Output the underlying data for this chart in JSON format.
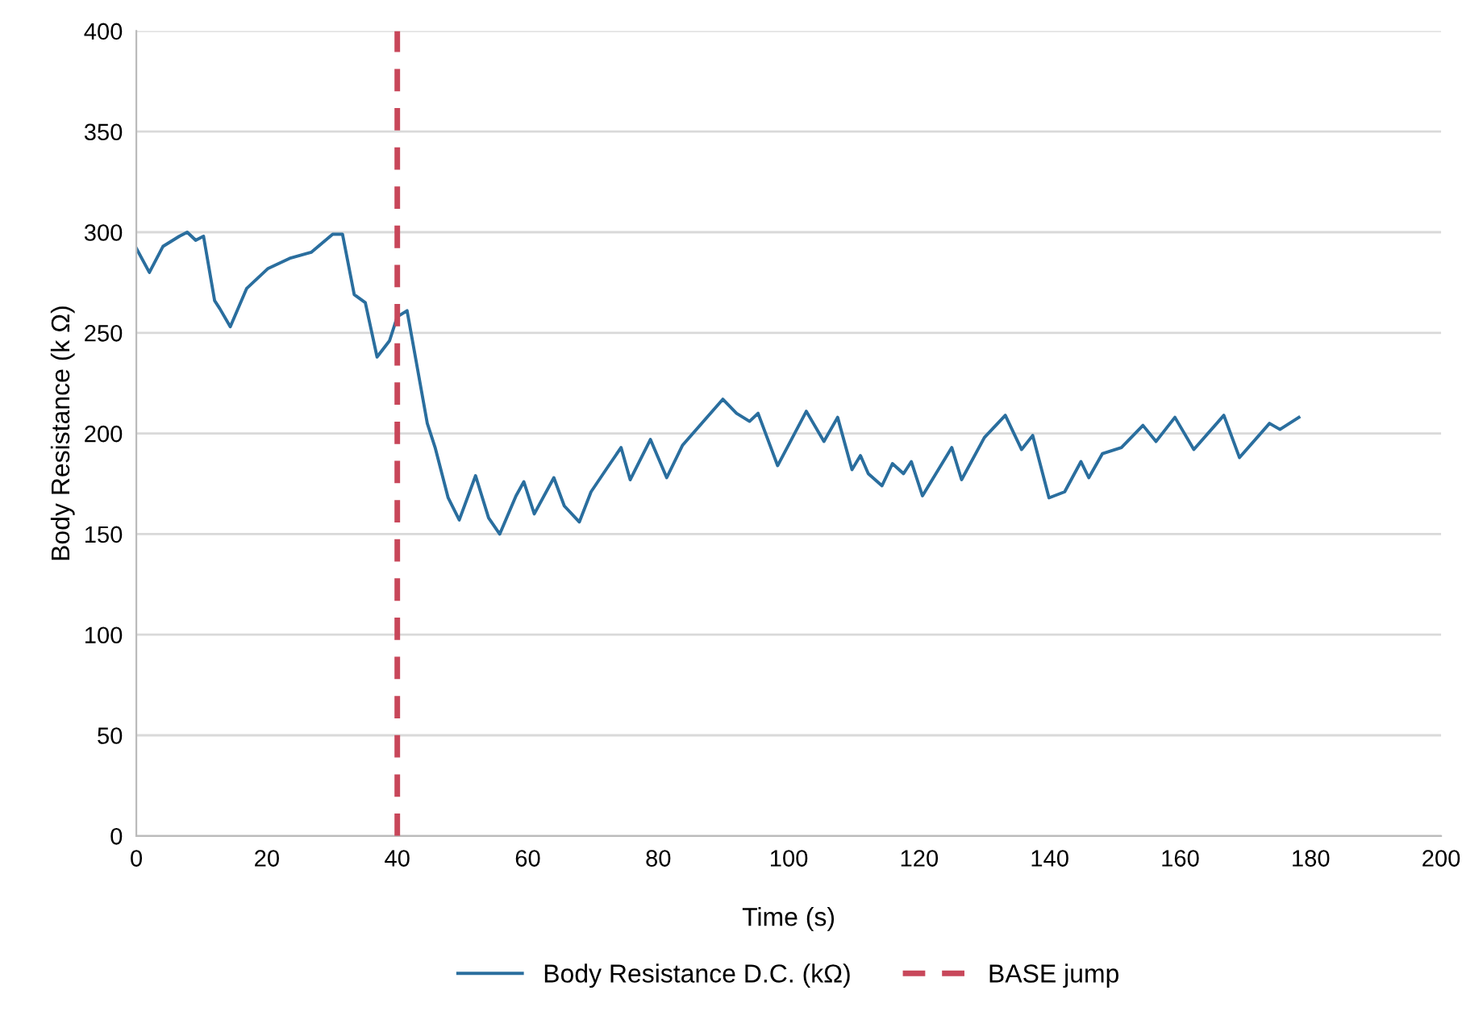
{
  "chart_data": {
    "type": "line",
    "xlabel": "Time (s)",
    "ylabel": "Body Resistance (k Ω)",
    "xlim": [
      0,
      200
    ],
    "xticks": [
      0,
      20,
      40,
      60,
      80,
      100,
      120,
      140,
      160,
      180,
      200
    ],
    "ylim": [
      0,
      400
    ],
    "yticks": [
      0,
      50,
      100,
      150,
      200,
      250,
      300,
      350,
      400
    ],
    "grid": "y",
    "legend": "bottom",
    "marker": "none",
    "line_style": "solid",
    "series": [
      {
        "name": "Body Resistance D.C. (kΩ)",
        "color": "#2a6e9e",
        "x": [
          0,
          2,
          4.1,
          6.6,
          7.8,
          9.1,
          10.3,
          12,
          12.8,
          14.4,
          16.9,
          20.2,
          23.5,
          26.8,
          30.1,
          31.6,
          33.4,
          35.1,
          36.9,
          38.8,
          40,
          41.5,
          44.6,
          45.8,
          47.8,
          49.5,
          52,
          54,
          55.7,
          58.2,
          59.4,
          61,
          64,
          65.6,
          67.9,
          69.7,
          72.2,
          74.3,
          75.7,
          78.8,
          81.3,
          83.7,
          89.9,
          92,
          94,
          95.3,
          98.3,
          102.7,
          105.4,
          107.5,
          109.7,
          111,
          112.2,
          114.3,
          115.9,
          117.6,
          118.8,
          120.5,
          125,
          126.5,
          130,
          133.2,
          135.7,
          137.4,
          139.9,
          142.3,
          144.8,
          146,
          148.1,
          151,
          154.3,
          156.3,
          159.2,
          162.1,
          166.7,
          169.1,
          173.7,
          175.3,
          178.2
        ],
        "values": [
          292,
          280,
          293,
          298,
          300,
          296,
          298,
          266,
          262,
          253,
          272,
          282,
          287,
          290,
          299,
          299,
          269,
          265,
          238,
          246,
          258,
          261,
          205,
          193,
          168,
          157,
          179,
          158,
          150,
          169,
          176,
          160,
          178,
          164,
          156,
          171,
          183,
          193,
          177,
          197,
          178,
          194,
          217,
          210,
          206,
          210,
          184,
          211,
          196,
          208,
          182,
          189,
          180,
          174,
          185,
          180,
          186,
          169,
          193,
          177,
          198,
          209,
          192,
          199,
          168,
          171,
          186,
          178,
          190,
          193,
          204,
          196,
          208,
          192,
          209,
          188,
          205,
          202,
          208
        ]
      }
    ],
    "ref_lines": [
      {
        "axis": "x",
        "value": 40,
        "label": "BASE jump",
        "color": "#c8475a",
        "line_style": "dashed"
      }
    ]
  }
}
